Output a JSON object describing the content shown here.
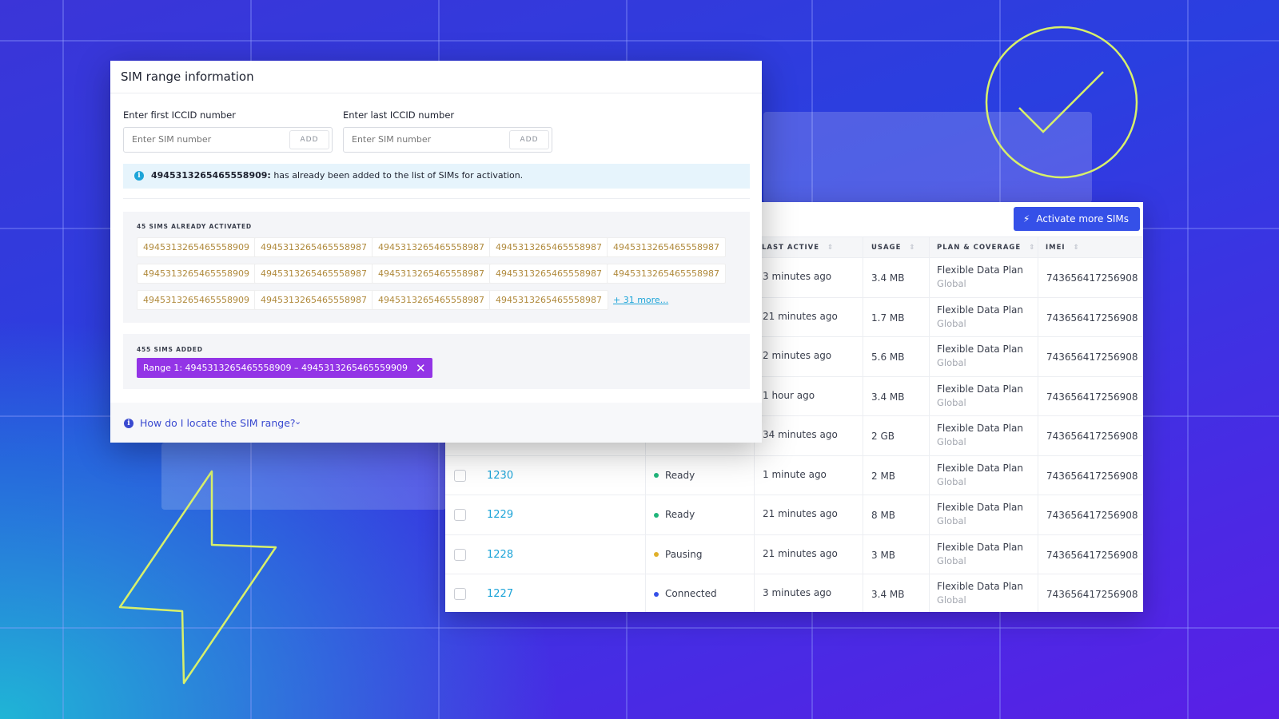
{
  "colors": {
    "accent": "#3550e8",
    "purple_chip": "#9334e6",
    "link": "#1da4d8",
    "deco_stroke": "#d8f06a"
  },
  "table": {
    "activate_button": "Activate more SIMs",
    "activate_icon": "lightning-icon",
    "headers": {
      "last_active": "LAST ACTIVE",
      "usage": "USAGE",
      "plan": "PLAN & COVERAGE",
      "imei": "IMEI"
    },
    "rows": [
      {
        "last_active": "3 minutes ago",
        "usage": "3.4 MB",
        "plan": "Flexible Data Plan",
        "coverage": "Global",
        "imei": "743656417256908"
      },
      {
        "last_active": "21 minutes ago",
        "usage": "1.7 MB",
        "plan": "Flexible Data Plan",
        "coverage": "Global",
        "imei": "743656417256908"
      },
      {
        "last_active": "2 minutes ago",
        "usage": "5.6 MB",
        "plan": "Flexible Data Plan",
        "coverage": "Global",
        "imei": "743656417256908"
      },
      {
        "last_active": "1 hour ago",
        "usage": "3.4 MB",
        "plan": "Flexible Data Plan",
        "coverage": "Global",
        "imei": "743656417256908"
      },
      {
        "last_active": "34 minutes ago",
        "usage": "2 GB",
        "plan": "Flexible Data Plan",
        "coverage": "Global",
        "imei": "743656417256908"
      },
      {
        "id": "1230",
        "status": "Ready",
        "status_color": "#1fb57a",
        "last_active": "1 minute ago",
        "usage": "2 MB",
        "plan": "Flexible Data Plan",
        "coverage": "Global",
        "imei": "743656417256908"
      },
      {
        "id": "1229",
        "status": "Ready",
        "status_color": "#1fb57a",
        "last_active": "21 minutes ago",
        "usage": "8 MB",
        "plan": "Flexible Data Plan",
        "coverage": "Global",
        "imei": "743656417256908"
      },
      {
        "id": "1228",
        "status": "Pausing",
        "status_color": "#e0b02a",
        "last_active": "21 minutes ago",
        "usage": "3 MB",
        "plan": "Flexible Data Plan",
        "coverage": "Global",
        "imei": "743656417256908"
      },
      {
        "id": "1227",
        "status": "Connected",
        "status_color": "#3550e8",
        "last_active": "3 minutes ago",
        "usage": "3.4 MB",
        "plan": "Flexible Data Plan",
        "coverage": "Global",
        "imei": "743656417256908"
      }
    ]
  },
  "modal": {
    "title": "SIM range information",
    "first_label": "Enter first ICCID number",
    "last_label": "Enter last ICCID number",
    "placeholder": "Enter SIM number",
    "add_label": "ADD",
    "alert_number": "4945313265465558909:",
    "alert_text": " has already been added to the list of SIMs for activation.",
    "activated_title": "45 SIMS ALREADY ACTIVATED",
    "activated": [
      [
        "4945313265465558909",
        "4945313265465558987",
        "4945313265465558987",
        "4945313265465558987",
        "4945313265465558987"
      ],
      [
        "4945313265465558909",
        "4945313265465558987",
        "4945313265465558987",
        "4945313265465558987",
        "4945313265465558987"
      ],
      [
        "4945313265465558909",
        "4945313265465558987",
        "4945313265465558987",
        "4945313265465558987"
      ]
    ],
    "more_link": "+ 31 more...",
    "added_title": "455 SIMS ADDED",
    "range_chip": "Range 1: 4945313265465558909 – 4945313265465559909",
    "help_text": "How do I locate the SIM range?"
  }
}
